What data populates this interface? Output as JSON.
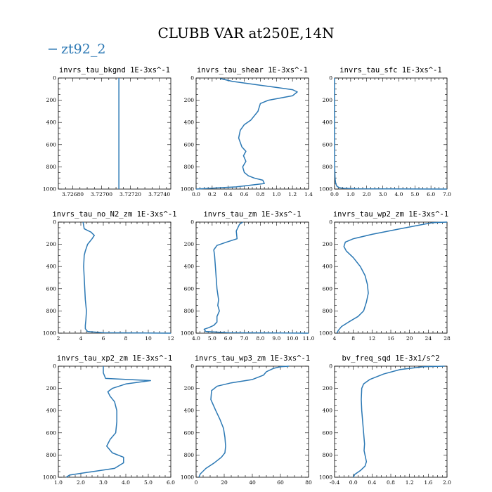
{
  "figure": {
    "title": "CLUBB VAR at250E,14N",
    "legend_label": "zt92_2",
    "line_color": "#2b78b4"
  },
  "chart_data": [
    {
      "type": "line",
      "title": "invrs_tau_bkgnd   1E-3xs^-1",
      "ylim": [
        1000,
        0
      ],
      "yticks": [
        0,
        200,
        400,
        600,
        800,
        1000
      ],
      "xlim": [
        3.7267,
        3.72748
      ],
      "xticks": [
        3.7268,
        3.727,
        3.7272,
        3.7274
      ],
      "xticklabels": [
        "3.72680",
        "3.72700",
        "3.72720",
        "3.72740"
      ],
      "series": [
        {
          "x": [
            3.72712,
            3.72712
          ],
          "y": [
            0,
            1000
          ]
        }
      ]
    },
    {
      "type": "line",
      "title": "invrs_tau_shear   1E-3xs^-1",
      "ylim": [
        1000,
        0
      ],
      "yticks": [
        0,
        200,
        400,
        600,
        800,
        1000
      ],
      "xlim": [
        0.0,
        1.4
      ],
      "xticks": [
        0.0,
        0.2,
        0.4,
        0.6,
        0.8,
        1.0,
        1.2,
        1.4
      ],
      "xticklabels": [
        "0.0",
        "0.2",
        "0.4",
        "0.6",
        "0.8",
        "1.0",
        "1.2",
        "1.4"
      ],
      "series": [
        {
          "x": [
            0.3,
            0.45,
            0.75,
            1.0,
            1.2,
            1.26,
            1.2,
            0.9,
            0.8,
            0.77,
            0.68,
            0.6,
            0.55,
            0.53,
            0.57,
            0.62,
            0.59,
            0.62,
            0.58,
            0.6,
            0.65,
            0.72,
            0.83,
            0.85,
            0.5,
            0.0
          ],
          "y": [
            5,
            30,
            60,
            85,
            105,
            125,
            160,
            200,
            230,
            300,
            380,
            420,
            470,
            540,
            620,
            660,
            700,
            750,
            800,
            850,
            880,
            900,
            920,
            950,
            980,
            1000
          ]
        }
      ]
    },
    {
      "type": "line",
      "title": "invrs_tau_sfc   1E-3xs^-1",
      "ylim": [
        1000,
        0
      ],
      "yticks": [
        0,
        200,
        400,
        600,
        800,
        1000
      ],
      "xlim": [
        0.0,
        7.0
      ],
      "xticks": [
        0.0,
        1.0,
        2.0,
        3.0,
        4.0,
        5.0,
        6.0,
        7.0
      ],
      "xticklabels": [
        "0.0",
        "1.0",
        "2.0",
        "3.0",
        "4.0",
        "5.0",
        "6.0",
        "7.0"
      ],
      "series": [
        {
          "x": [
            0.0,
            0.0,
            0.01,
            0.03,
            0.07,
            0.15,
            0.3,
            0.6,
            1.5,
            7.0
          ],
          "y": [
            0,
            500,
            800,
            900,
            950,
            975,
            988,
            994,
            998,
            1000
          ]
        }
      ]
    },
    {
      "type": "line",
      "title": "invrs_tau_no_N2_zm   1E-3xs^-1",
      "ylim": [
        1000,
        0
      ],
      "yticks": [
        0,
        200,
        400,
        600,
        800,
        1000
      ],
      "xlim": [
        2,
        12
      ],
      "xticks": [
        2,
        4,
        6,
        8,
        10,
        12
      ],
      "xticklabels": [
        "2",
        "4",
        "6",
        "8",
        "10",
        "12"
      ],
      "series": [
        {
          "x": [
            4.2,
            4.3,
            4.9,
            5.2,
            5.0,
            4.6,
            4.4,
            4.3,
            4.25,
            4.3,
            4.35,
            4.4,
            4.5,
            4.45,
            4.4,
            4.4,
            4.6,
            6.0,
            12.0
          ],
          "y": [
            0,
            60,
            90,
            120,
            150,
            200,
            260,
            300,
            400,
            500,
            600,
            700,
            800,
            880,
            930,
            960,
            985,
            996,
            1000
          ]
        }
      ]
    },
    {
      "type": "line",
      "title": "invrs_tau_zm   1E-3xs^-1",
      "ylim": [
        1000,
        0
      ],
      "yticks": [
        0,
        200,
        400,
        600,
        800,
        1000
      ],
      "xlim": [
        4.0,
        11.0
      ],
      "xticks": [
        4.0,
        5.0,
        6.0,
        7.0,
        8.0,
        9.0,
        10.0,
        11.0
      ],
      "xticklabels": [
        "4.0",
        "5.0",
        "6.0",
        "7.0",
        "8.0",
        "9.0",
        "10.0",
        "11.0"
      ],
      "series": [
        {
          "x": [
            6.9,
            6.7,
            6.6,
            6.5,
            6.55,
            5.9,
            5.3,
            5.1,
            5.15,
            5.2,
            5.25,
            5.3,
            5.4,
            5.35,
            5.45,
            5.3,
            5.3,
            5.1,
            4.8,
            4.5,
            4.6,
            6.0,
            11.0
          ],
          "y": [
            0,
            20,
            50,
            80,
            150,
            180,
            210,
            250,
            300,
            400,
            500,
            600,
            700,
            750,
            800,
            850,
            900,
            930,
            950,
            965,
            985,
            996,
            1000
          ]
        }
      ]
    },
    {
      "type": "line",
      "title": "invrs_tau_wp2_zm   1E-3xs^-1",
      "ylim": [
        1000,
        0
      ],
      "yticks": [
        0,
        200,
        400,
        600,
        800,
        1000
      ],
      "xlim": [
        4,
        28
      ],
      "xticks": [
        4,
        8,
        12,
        16,
        20,
        24,
        28
      ],
      "xticklabels": [
        "4",
        "8",
        "12",
        "16",
        "20",
        "24",
        "28"
      ],
      "series": [
        {
          "x": [
            28.0,
            25.0,
            23.0,
            18.0,
            12.0,
            8.0,
            6.3,
            6.0,
            6.5,
            8.0,
            9.5,
            10.5,
            11.0,
            11.2,
            10.8,
            10.2,
            9.0,
            7.0,
            5.5,
            4.8,
            4.5
          ],
          "y": [
            0,
            5,
            20,
            60,
            110,
            150,
            180,
            220,
            260,
            320,
            400,
            480,
            560,
            640,
            720,
            800,
            850,
            900,
            940,
            975,
            1000
          ]
        }
      ]
    },
    {
      "type": "line",
      "title": "invrs_tau_xp2_zm   1E-3xs^-1",
      "ylim": [
        1000,
        0
      ],
      "yticks": [
        0,
        200,
        400,
        600,
        800,
        1000
      ],
      "xlim": [
        1.0,
        6.0
      ],
      "xticks": [
        1.0,
        2.0,
        3.0,
        4.0,
        5.0,
        6.0
      ],
      "xticklabels": [
        "1.0",
        "2.0",
        "3.0",
        "4.0",
        "5.0",
        "6.0"
      ],
      "series": [
        {
          "x": [
            3.0,
            3.0,
            3.1,
            5.1,
            4.0,
            3.4,
            3.2,
            3.3,
            3.5,
            3.6,
            3.6,
            3.55,
            3.3,
            3.15,
            3.4,
            3.9,
            3.9,
            3.5,
            2.5,
            1.5,
            1.35
          ],
          "y": [
            0,
            60,
            110,
            130,
            160,
            200,
            230,
            270,
            320,
            400,
            500,
            600,
            660,
            720,
            780,
            820,
            870,
            920,
            950,
            980,
            1000
          ]
        }
      ]
    },
    {
      "type": "line",
      "title": "invrs_tau_wp3_zm   1E-3xs^-1",
      "ylim": [
        1000,
        0
      ],
      "yticks": [
        0,
        200,
        400,
        600,
        800,
        1000
      ],
      "xlim": [
        0,
        80
      ],
      "xticks": [
        0,
        20,
        40,
        60,
        80
      ],
      "xticklabels": [
        "0",
        "20",
        "40",
        "60",
        "80"
      ],
      "series": [
        {
          "x": [
            66.0,
            60.0,
            55.0,
            50.0,
            48.0,
            40.0,
            25.0,
            15.0,
            11.0,
            10.5,
            14.0,
            17.0,
            19.5,
            20.5,
            21.0,
            20.5,
            18.0,
            13.0,
            7.0,
            3.0,
            2.0
          ],
          "y": [
            0,
            5,
            20,
            50,
            80,
            120,
            150,
            180,
            220,
            300,
            400,
            480,
            560,
            640,
            720,
            780,
            820,
            870,
            920,
            970,
            1000
          ]
        }
      ]
    },
    {
      "type": "line",
      "title": "bv_freq_sqd   1E-3x1/s^2",
      "ylim": [
        1000,
        0
      ],
      "yticks": [
        0,
        200,
        400,
        600,
        800,
        1000
      ],
      "xlim": [
        -0.4,
        2.0
      ],
      "xticks": [
        -0.4,
        0.0,
        0.4,
        0.8,
        1.2,
        1.6,
        2.0
      ],
      "xticklabels": [
        "-0.4",
        "0.0",
        "0.4",
        "0.8",
        "1.2",
        "1.6",
        "2.0"
      ],
      "series": [
        {
          "x": [
            1.95,
            1.5,
            1.0,
            0.65,
            0.35,
            0.22,
            0.18,
            0.17,
            0.18,
            0.2,
            0.22,
            0.24,
            0.23,
            0.26,
            0.28,
            0.25,
            0.15,
            0.03,
            0.0
          ],
          "y": [
            0,
            5,
            30,
            70,
            120,
            160,
            200,
            300,
            400,
            500,
            600,
            700,
            760,
            820,
            860,
            900,
            940,
            975,
            1000
          ]
        }
      ]
    }
  ]
}
